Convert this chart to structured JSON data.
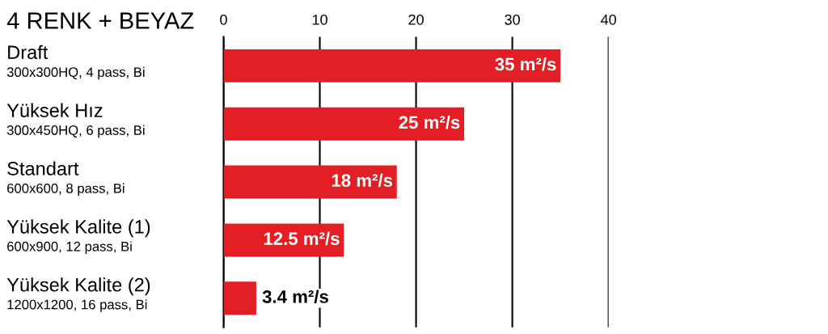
{
  "chart_data": {
    "type": "bar",
    "orientation": "horizontal",
    "title": "4 RENK + BEYAZ",
    "categories": [
      "Draft\n300x300HQ, 4 pass, Bi",
      "Yüksek Hız\n300x450HQ, 6 pass, Bi",
      "Standart\n600x600, 8 pass, Bi",
      "Yüksek Kalite (1)\n600x900, 12 pass, Bi",
      "Yüksek Kalite (2)\n1200x1200, 16 pass, Bi"
    ],
    "values": [
      35,
      25,
      18,
      12.5,
      3.4
    ],
    "value_labels": [
      "35 m²/s",
      "25 m²/s",
      "18 m²/s",
      "12.5 m²/s",
      "3.4 m²/s"
    ],
    "color": "#e31e24",
    "xlim": [
      0,
      40
    ],
    "xticks": [
      0,
      10,
      20,
      30,
      40
    ],
    "grid": "x"
  }
}
